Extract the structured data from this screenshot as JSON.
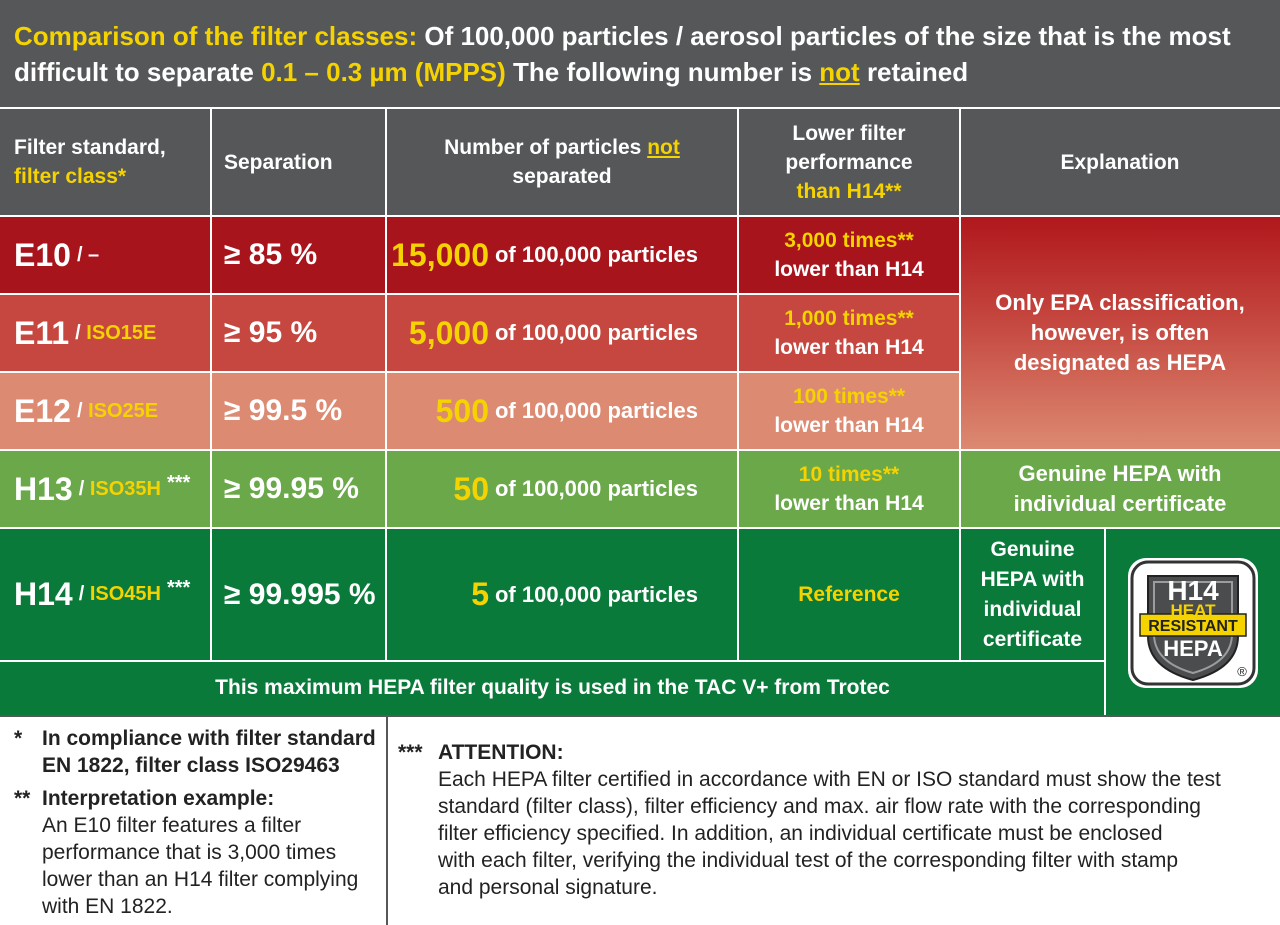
{
  "header": {
    "title_prefix": "Comparison of the filter classes:",
    "title_line1_rest": "Of 100,000 particles / aerosol particles of the size that is the most",
    "title_line2_a": "difficult to separate",
    "title_line2_range": "0.1 – 0.3 µm (MPPS)",
    "title_line2_b": "The following number is",
    "title_line2_not": "not",
    "title_line2_c": "retained"
  },
  "columns": {
    "filter_standard_a": "Filter standard,",
    "filter_standard_b": "filter class*",
    "separation": "Separation",
    "number_a": "Number of particles",
    "number_not": "not",
    "number_b": "separated",
    "lower_a": "Lower filter",
    "lower_b": "performance",
    "lower_c": "than H14**",
    "explanation": "Explanation"
  },
  "rows": [
    {
      "cls": "E10",
      "iso": "/ –",
      "stars": "",
      "separation": "≥ 85 %",
      "count": "15,000",
      "of": "of 100,000 particles",
      "times": "3,000 times**",
      "lower": "lower than H14",
      "bg": "#a8141c"
    },
    {
      "cls": "E11",
      "iso": "ISO15E",
      "stars": "",
      "separation": "≥ 95 %",
      "count": "5,000",
      "of": "of 100,000 particles",
      "times": "1,000 times**",
      "lower": "lower than H14",
      "bg": "#c5473f"
    },
    {
      "cls": "E12",
      "iso": "ISO25E",
      "stars": "",
      "separation": "≥ 99.5 %",
      "count": "500",
      "of": "of 100,000 particles",
      "times": "100 times**",
      "lower": "lower than H14",
      "bg": "#dc8a72"
    },
    {
      "cls": "H13",
      "iso": "ISO35H",
      "stars": "***",
      "separation": "≥ 99.95 %",
      "count": "50",
      "of": "of 100,000 particles",
      "times": "10 times**",
      "lower": "lower than H14",
      "bg": "#6aa84a"
    },
    {
      "cls": "H14",
      "iso": "ISO45H",
      "stars": "***",
      "separation": "≥ 99.995 %",
      "count": "5",
      "of": "of 100,000 particles",
      "times": "Reference",
      "lower": "",
      "bg": "#0a7a3a"
    }
  ],
  "explanations": {
    "epa_1": "Only EPA classification,",
    "epa_2": "however, is often",
    "epa_3": "designated as HEPA",
    "h13_1": "Genuine HEPA with",
    "h13_2": "individual certificate",
    "h14_1": "Genuine",
    "h14_2": "HEPA with",
    "h14_3": "individual",
    "h14_4": "certificate"
  },
  "footer_bar": "This maximum HEPA filter quality is used in the TAC V+ from Trotec",
  "badge": {
    "line1": "H14",
    "line2": "HEAT",
    "line3": "RESISTANT",
    "line4": "HEPA",
    "reg": "®"
  },
  "notes": {
    "n1_mark": "*",
    "n1_a": "In compliance with filter standard",
    "n1_b": "EN 1822, filter class ISO29463",
    "n2_mark": "**",
    "n2_title": "Interpretation example:",
    "n2_l1": "An E10 filter features a filter",
    "n2_l2": "performance that is 3,000 times",
    "n2_l3": "lower than an H14 filter complying",
    "n2_l4": "with EN 1822.",
    "n3_mark": "***",
    "n3_title": "ATTENTION:",
    "n3_l1": "Each HEPA filter certified in accordance with EN or ISO standard must show the test",
    "n3_l2": "standard (filter class), filter efficiency and max. air flow rate with the corresponding",
    "n3_l3": "filter efficiency specified. In addition, an individual certificate must be enclosed",
    "n3_l4": "with each filter, verifying the individual test of the corresponding filter with stamp",
    "n3_l5": "and personal signature."
  },
  "colors": {
    "grey": "#555759",
    "yellow": "#f5d300",
    "dark_green": "#0a7a3a"
  }
}
